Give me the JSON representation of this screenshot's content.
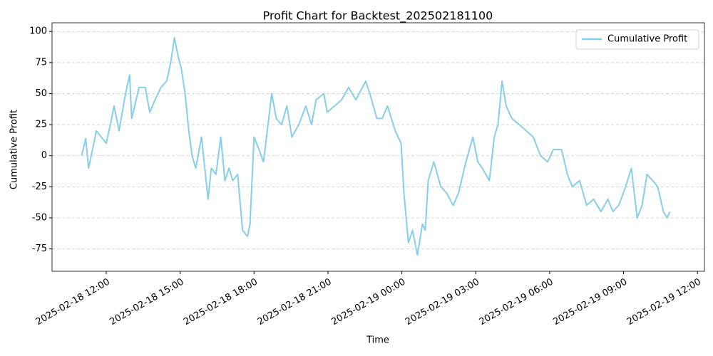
{
  "chart_data": {
    "type": "line",
    "title": "Profit Chart for Backtest_202502181100",
    "xlabel": "Time",
    "ylabel": "Cumulative Profit",
    "legend": "upper right",
    "grid": true,
    "xlim": [
      "2025-02-18 09:48",
      "2025-02-19 12:17"
    ],
    "ylim": [
      -93,
      107
    ],
    "xticks": [
      "2025-02-18 12:00",
      "2025-02-18 15:00",
      "2025-02-18 18:00",
      "2025-02-18 21:00",
      "2025-02-19 00:00",
      "2025-02-19 03:00",
      "2025-02-19 06:00",
      "2025-02-19 09:00",
      "2025-02-19 12:00"
    ],
    "yticks": [
      -75,
      -50,
      -25,
      0,
      25,
      50,
      75,
      100
    ],
    "x": [
      "2025-02-18 11:00",
      "2025-02-18 11:10",
      "2025-02-18 11:17",
      "2025-02-18 11:36",
      "2025-02-18 12:00",
      "2025-02-18 12:10",
      "2025-02-18 12:19",
      "2025-02-18 12:31",
      "2025-02-18 12:47",
      "2025-02-18 12:57",
      "2025-02-18 13:02",
      "2025-02-18 13:20",
      "2025-02-18 13:35",
      "2025-02-18 13:46",
      "2025-02-18 13:59",
      "2025-02-18 14:13",
      "2025-02-18 14:27",
      "2025-02-18 14:37",
      "2025-02-18 14:46",
      "2025-02-18 14:55",
      "2025-02-18 15:03",
      "2025-02-18 15:12",
      "2025-02-18 15:21",
      "2025-02-18 15:29",
      "2025-02-18 15:38",
      "2025-02-18 15:52",
      "2025-02-18 16:08",
      "2025-02-18 16:16",
      "2025-02-18 16:27",
      "2025-02-18 16:39",
      "2025-02-18 16:49",
      "2025-02-18 16:59",
      "2025-02-18 17:08",
      "2025-02-18 17:20",
      "2025-02-18 17:32",
      "2025-02-18 17:44",
      "2025-02-18 17:50",
      "2025-02-18 18:00",
      "2025-02-18 18:12",
      "2025-02-18 18:23",
      "2025-02-18 18:43",
      "2025-02-18 18:54",
      "2025-02-18 19:07",
      "2025-02-18 19:20",
      "2025-02-18 19:32",
      "2025-02-18 19:49",
      "2025-02-18 20:06",
      "2025-02-18 20:20",
      "2025-02-18 20:31",
      "2025-02-18 20:50",
      "2025-02-18 20:58",
      "2025-02-18 21:16",
      "2025-02-18 21:33",
      "2025-02-18 21:50",
      "2025-02-18 22:08",
      "2025-02-18 22:32",
      "2025-02-18 22:42",
      "2025-02-18 22:59",
      "2025-02-18 23:12",
      "2025-02-18 23:25",
      "2025-02-18 23:44",
      "2025-02-18 23:58",
      "2025-02-19 00:05",
      "2025-02-19 00:16",
      "2025-02-19 00:26",
      "2025-02-19 00:38",
      "2025-02-19 00:50",
      "2025-02-19 00:57",
      "2025-02-19 01:04",
      "2025-02-19 01:18",
      "2025-02-19 01:35",
      "2025-02-19 01:49",
      "2025-02-19 02:05",
      "2025-02-19 02:18",
      "2025-02-19 02:36",
      "2025-02-19 02:53",
      "2025-02-19 03:05",
      "2025-02-19 03:16",
      "2025-02-19 03:33",
      "2025-02-19 03:45",
      "2025-02-19 03:54",
      "2025-02-19 04:04",
      "2025-02-19 04:14",
      "2025-02-19 04:28",
      "2025-02-19 04:46",
      "2025-02-19 05:03",
      "2025-02-19 05:20",
      "2025-02-19 05:38",
      "2025-02-19 05:55",
      "2025-02-19 06:09",
      "2025-02-19 06:29",
      "2025-02-19 06:43",
      "2025-02-19 06:55",
      "2025-02-19 07:13",
      "2025-02-19 07:30",
      "2025-02-19 07:47",
      "2025-02-19 08:05",
      "2025-02-19 08:22",
      "2025-02-19 08:34",
      "2025-02-19 08:48",
      "2025-02-19 09:05",
      "2025-02-19 09:19",
      "2025-02-19 09:33",
      "2025-02-19 09:45",
      "2025-02-19 09:57",
      "2025-02-19 10:11",
      "2025-02-19 10:23",
      "2025-02-19 10:37",
      "2025-02-19 10:46",
      "2025-02-19 10:53"
    ],
    "series": [
      {
        "name": "Cumulative Profit",
        "color": "#87ceeb",
        "values": [
          0,
          14,
          -10,
          20,
          10,
          25,
          40,
          20,
          50,
          65,
          30,
          55,
          55,
          35,
          45,
          55,
          60,
          75,
          95,
          80,
          70,
          50,
          20,
          0,
          -10,
          15,
          -35,
          -10,
          -15,
          15,
          -20,
          -10,
          -20,
          -15,
          -60,
          -65,
          -55,
          15,
          5,
          -5,
          50,
          30,
          25,
          40,
          15,
          25,
          40,
          25,
          45,
          50,
          35,
          40,
          45,
          55,
          45,
          60,
          50,
          30,
          30,
          40,
          20,
          10,
          -30,
          -70,
          -60,
          -80,
          -55,
          -60,
          -20,
          -5,
          -25,
          -30,
          -40,
          -30,
          -5,
          15,
          -5,
          -10,
          -20,
          15,
          25,
          60,
          40,
          30,
          25,
          20,
          15,
          0,
          -5,
          5,
          5,
          -15,
          -25,
          -20,
          -40,
          -35,
          -45,
          -35,
          -45,
          -40,
          -25,
          -10,
          -50,
          -40,
          -15,
          -20,
          -25,
          -45,
          -50,
          -45
        ]
      }
    ]
  }
}
